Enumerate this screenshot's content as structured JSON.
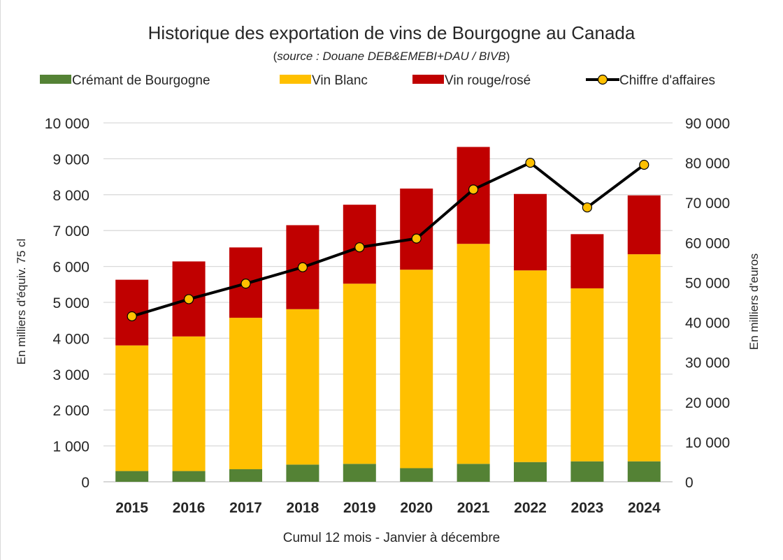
{
  "chart_data": {
    "type": "bar",
    "stacked": true,
    "title": "Historique des exportation de vins de Bourgogne au Canada",
    "subtitle_paren_open": "(",
    "subtitle_italic": "source : Douane DEB&EMEBI+DAU / BIVB",
    "subtitle_paren_close": ")",
    "xlabel": "Cumul 12 mois - Janvier à décembre",
    "ylabel": "En milliers d'équiv. 75 cl",
    "y2label": "En milliers d'euros",
    "categories": [
      "2015",
      "2016",
      "2017",
      "2018",
      "2019",
      "2020",
      "2021",
      "2022",
      "2023",
      "2024"
    ],
    "ylim": [
      0,
      10000
    ],
    "y2lim": [
      0,
      90000
    ],
    "y_ticks": [
      "0",
      "1 000",
      "2 000",
      "3 000",
      "4 000",
      "5 000",
      "6 000",
      "7 000",
      "8 000",
      "9 000",
      "10 000"
    ],
    "y2_ticks": [
      "0",
      "10 000",
      "20 000",
      "30 000",
      "40 000",
      "50 000",
      "60 000",
      "70 000",
      "80 000",
      "90 000"
    ],
    "grid": true,
    "legend_position": "top",
    "series": [
      {
        "name": "Crémant de Bourgogne",
        "kind": "bar",
        "axis": "left",
        "color": "#548235",
        "values": [
          300,
          300,
          350,
          480,
          500,
          380,
          500,
          550,
          570,
          570
        ]
      },
      {
        "name": "Vin Blanc",
        "kind": "bar",
        "axis": "left",
        "color": "#ffc000",
        "values": [
          3500,
          3750,
          4220,
          4330,
          5020,
          5530,
          6130,
          5340,
          4820,
          5770
        ]
      },
      {
        "name": "Vin rouge/rosé",
        "kind": "bar",
        "axis": "left",
        "color": "#c00000",
        "values": [
          1830,
          2090,
          1960,
          2340,
          2200,
          2260,
          2700,
          2130,
          1510,
          1640
        ]
      },
      {
        "name": "Chiffre d'affaires",
        "kind": "line",
        "axis": "right",
        "color": "#000000",
        "marker_color": "#ffc000",
        "values": [
          41500,
          45800,
          49700,
          53800,
          58800,
          61000,
          73300,
          80000,
          68800,
          79500
        ]
      }
    ]
  }
}
